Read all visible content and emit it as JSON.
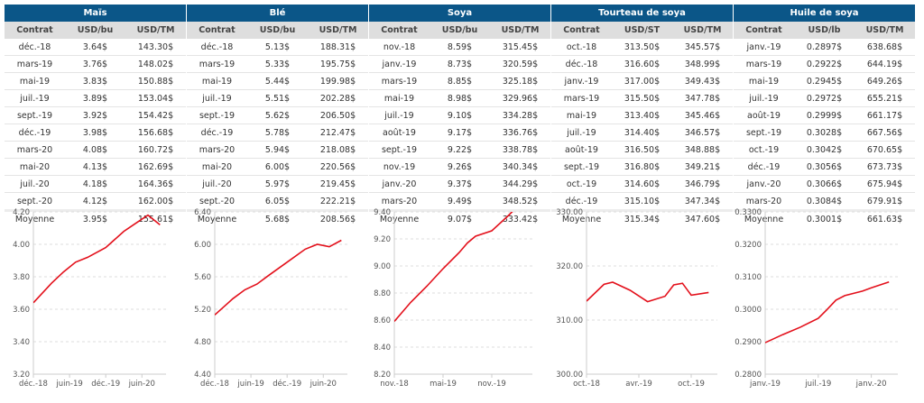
{
  "tables": [
    {
      "title": "Maïs",
      "headers": [
        "Contrat",
        "USD/bu",
        "USD/TM"
      ],
      "rows": [
        [
          "déc.-18",
          "3.64$",
          "143.30$"
        ],
        [
          "mars-19",
          "3.76$",
          "148.02$"
        ],
        [
          "mai-19",
          "3.83$",
          "150.88$"
        ],
        [
          "juil.-19",
          "3.89$",
          "153.04$"
        ],
        [
          "sept.-19",
          "3.92$",
          "154.42$"
        ],
        [
          "déc.-19",
          "3.98$",
          "156.68$"
        ],
        [
          "mars-20",
          "4.08$",
          "160.72$"
        ],
        [
          "mai-20",
          "4.13$",
          "162.69$"
        ],
        [
          "juil.-20",
          "4.18$",
          "164.36$"
        ],
        [
          "sept.-20",
          "4.12$",
          "162.00$"
        ]
      ],
      "average": [
        "Moyenne",
        "3.95$",
        "155.61$"
      ]
    },
    {
      "title": "Blé",
      "headers": [
        "Contrat",
        "USD/bu",
        "USD/TM"
      ],
      "rows": [
        [
          "déc.-18",
          "5.13$",
          "188.31$"
        ],
        [
          "mars-19",
          "5.33$",
          "195.75$"
        ],
        [
          "mai-19",
          "5.44$",
          "199.98$"
        ],
        [
          "juil.-19",
          "5.51$",
          "202.28$"
        ],
        [
          "sept.-19",
          "5.62$",
          "206.50$"
        ],
        [
          "déc.-19",
          "5.78$",
          "212.47$"
        ],
        [
          "mars-20",
          "5.94$",
          "218.08$"
        ],
        [
          "mai-20",
          "6.00$",
          "220.56$"
        ],
        [
          "juil.-20",
          "5.97$",
          "219.45$"
        ],
        [
          "sept.-20",
          "6.05$",
          "222.21$"
        ]
      ],
      "average": [
        "Moyenne",
        "5.68$",
        "208.56$"
      ]
    },
    {
      "title": "Soya",
      "headers": [
        "Contrat",
        "USD/bu",
        "USD/TM"
      ],
      "rows": [
        [
          "nov.-18",
          "8.59$",
          "315.45$"
        ],
        [
          "janv.-19",
          "8.73$",
          "320.59$"
        ],
        [
          "mars-19",
          "8.85$",
          "325.18$"
        ],
        [
          "mai-19",
          "8.98$",
          "329.96$"
        ],
        [
          "juil.-19",
          "9.10$",
          "334.28$"
        ],
        [
          "août-19",
          "9.17$",
          "336.76$"
        ],
        [
          "sept.-19",
          "9.22$",
          "338.78$"
        ],
        [
          "nov.-19",
          "9.26$",
          "340.34$"
        ],
        [
          "janv.-20",
          "9.37$",
          "344.29$"
        ],
        [
          "mars-20",
          "9.49$",
          "348.52$"
        ]
      ],
      "average": [
        "Moyenne",
        "9.07$",
        "333.42$"
      ]
    },
    {
      "title": "Tourteau de soya",
      "headers": [
        "Contrat",
        "USD/ST",
        "USD/TM"
      ],
      "rows": [
        [
          "oct.-18",
          "313.50$",
          "345.57$"
        ],
        [
          "déc.-18",
          "316.60$",
          "348.99$"
        ],
        [
          "janv.-19",
          "317.00$",
          "349.43$"
        ],
        [
          "mars-19",
          "315.50$",
          "347.78$"
        ],
        [
          "mai-19",
          "313.40$",
          "345.46$"
        ],
        [
          "juil.-19",
          "314.40$",
          "346.57$"
        ],
        [
          "août-19",
          "316.50$",
          "348.88$"
        ],
        [
          "sept.-19",
          "316.80$",
          "349.21$"
        ],
        [
          "oct.-19",
          "314.60$",
          "346.79$"
        ],
        [
          "déc.-19",
          "315.10$",
          "347.34$"
        ]
      ],
      "average": [
        "Moyenne",
        "315.34$",
        "347.60$"
      ]
    },
    {
      "title": "Huile de soya",
      "headers": [
        "Contrat",
        "USD/lb",
        "USD/TM"
      ],
      "rows": [
        [
          "janv.-19",
          "0.2897$",
          "638.68$"
        ],
        [
          "mars-19",
          "0.2922$",
          "644.19$"
        ],
        [
          "mai-19",
          "0.2945$",
          "649.26$"
        ],
        [
          "juil.-19",
          "0.2972$",
          "655.21$"
        ],
        [
          "août-19",
          "0.2999$",
          "661.17$"
        ],
        [
          "sept.-19",
          "0.3028$",
          "667.56$"
        ],
        [
          "oct.-19",
          "0.3042$",
          "670.65$"
        ],
        [
          "déc.-19",
          "0.3056$",
          "673.73$"
        ],
        [
          "janv.-20",
          "0.3066$",
          "675.94$"
        ],
        [
          "mars-20",
          "0.3084$",
          "679.91$"
        ]
      ],
      "average": [
        "Moyenne",
        "0.3001$",
        "661.63$"
      ]
    }
  ],
  "chart_data": [
    {
      "type": "line",
      "color": "#e3101b",
      "grid": true,
      "x": [
        "2018-12",
        "2019-03",
        "2019-05",
        "2019-07",
        "2019-09",
        "2019-12",
        "2020-03",
        "2020-05",
        "2020-07",
        "2020-09"
      ],
      "values": [
        3.64,
        3.76,
        3.83,
        3.89,
        3.92,
        3.98,
        4.08,
        4.13,
        4.18,
        4.12
      ],
      "xlim": [
        "2018-12",
        "2020-10"
      ],
      "ylim": [
        3.2,
        4.2
      ],
      "yticks": [
        "3.20",
        "3.40",
        "3.60",
        "3.80",
        "4.00",
        "4.20"
      ],
      "xticks": [
        {
          "date": "2018-12",
          "label": "déc.-18"
        },
        {
          "date": "2019-06",
          "label": "juin-19"
        },
        {
          "date": "2019-12",
          "label": "déc.-19"
        },
        {
          "date": "2020-06",
          "label": "juin-20"
        }
      ]
    },
    {
      "type": "line",
      "color": "#e3101b",
      "grid": true,
      "x": [
        "2018-12",
        "2019-03",
        "2019-05",
        "2019-07",
        "2019-09",
        "2019-12",
        "2020-03",
        "2020-05",
        "2020-07",
        "2020-09"
      ],
      "values": [
        5.13,
        5.33,
        5.44,
        5.51,
        5.62,
        5.78,
        5.94,
        6.0,
        5.97,
        6.05
      ],
      "xlim": [
        "2018-12",
        "2020-10"
      ],
      "ylim": [
        4.4,
        6.4
      ],
      "yticks": [
        "4.40",
        "4.80",
        "5.20",
        "5.60",
        "6.00",
        "6.40"
      ],
      "xticks": [
        {
          "date": "2018-12",
          "label": "déc.-18"
        },
        {
          "date": "2019-06",
          "label": "juin-19"
        },
        {
          "date": "2019-12",
          "label": "déc.-19"
        },
        {
          "date": "2020-06",
          "label": "juin-20"
        }
      ]
    },
    {
      "type": "line",
      "color": "#e3101b",
      "grid": true,
      "x": [
        "2018-11",
        "2019-01",
        "2019-03",
        "2019-05",
        "2019-07",
        "2019-08",
        "2019-09",
        "2019-11",
        "2020-01",
        "2020-03"
      ],
      "values": [
        8.59,
        8.73,
        8.85,
        8.98,
        9.1,
        9.17,
        9.22,
        9.26,
        9.37,
        9.49
      ],
      "xlim": [
        "2018-11",
        "2020-04"
      ],
      "ylim": [
        8.2,
        9.4
      ],
      "yticks": [
        "8.20",
        "8.40",
        "8.60",
        "8.80",
        "9.00",
        "9.20",
        "9.40"
      ],
      "xticks": [
        {
          "date": "2018-11",
          "label": "nov.-18"
        },
        {
          "date": "2019-05",
          "label": "mai-19"
        },
        {
          "date": "2019-11",
          "label": "nov.-19"
        }
      ]
    },
    {
      "type": "line",
      "color": "#e3101b",
      "grid": true,
      "x": [
        "2018-10",
        "2018-12",
        "2019-01",
        "2019-03",
        "2019-05",
        "2019-07",
        "2019-08",
        "2019-09",
        "2019-10",
        "2019-12"
      ],
      "values": [
        313.5,
        316.6,
        317.0,
        315.5,
        313.4,
        314.4,
        316.5,
        316.8,
        314.6,
        315.1
      ],
      "xlim": [
        "2018-10",
        "2020-01"
      ],
      "ylim": [
        300,
        330
      ],
      "yticks": [
        "300.00",
        "310.00",
        "320.00",
        "330.00"
      ],
      "xticks": [
        {
          "date": "2018-10",
          "label": "oct.-18"
        },
        {
          "date": "2019-04",
          "label": "avr.-19"
        },
        {
          "date": "2019-10",
          "label": "oct.-19"
        }
      ]
    },
    {
      "type": "line",
      "color": "#e3101b",
      "grid": true,
      "x": [
        "2019-01",
        "2019-03",
        "2019-05",
        "2019-07",
        "2019-08",
        "2019-09",
        "2019-10",
        "2019-12",
        "2020-01",
        "2020-03"
      ],
      "values": [
        0.2897,
        0.2922,
        0.2945,
        0.2972,
        0.2999,
        0.3028,
        0.3042,
        0.3056,
        0.3066,
        0.3084
      ],
      "xlim": [
        "2019-01",
        "2020-04"
      ],
      "ylim": [
        0.28,
        0.33
      ],
      "yticks": [
        "0.2800",
        "0.2900",
        "0.3000",
        "0.3100",
        "0.3200",
        "0.3300"
      ],
      "xticks": [
        {
          "date": "2019-01",
          "label": "janv.-19"
        },
        {
          "date": "2019-07",
          "label": "juil.-19"
        },
        {
          "date": "2020-01",
          "label": "janv.-20"
        }
      ]
    }
  ]
}
